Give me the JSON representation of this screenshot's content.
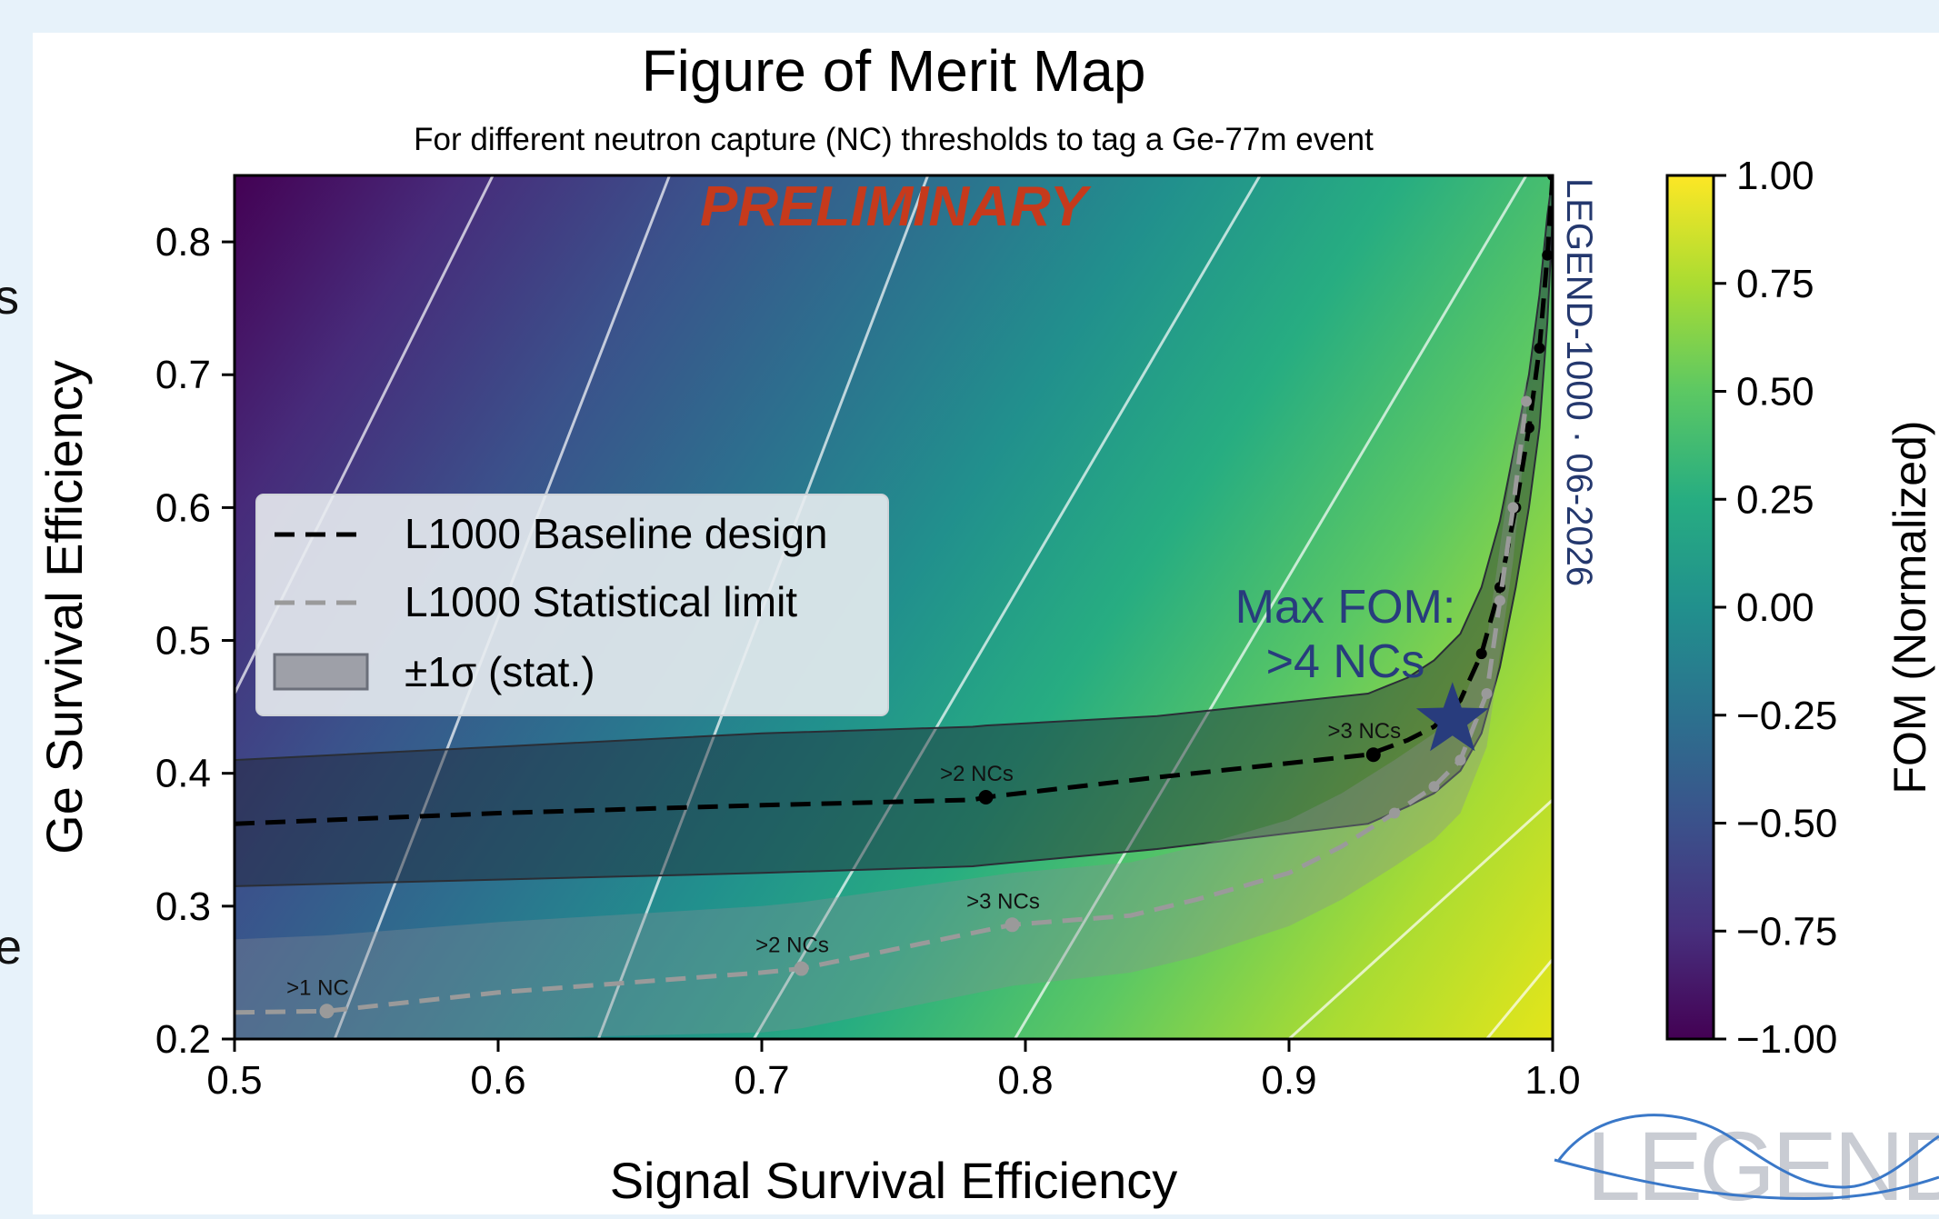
{
  "slide": {
    "edge_text_top": "s",
    "edge_text_bottom": "e",
    "logo_text": "LEGEND"
  },
  "colors": {
    "slide_background": "#e7f2fa",
    "panel_background": "#ffffff",
    "baseline": "#000000",
    "stat_limit": "#9a9a9a",
    "band": "#6b6f7a",
    "star": "#283c7d",
    "preliminary": "#c63a1c",
    "watermark": "#24386e",
    "logo": "#c9ccd3",
    "logo_wave": "#3a78c8"
  },
  "chart_data": {
    "type": "heatmap",
    "title": "Figure of Merit Map",
    "subtitle": "For different neutron capture (NC) thresholds to tag a Ge-77m event",
    "xlabel": "Signal Survival Efficiency",
    "ylabel": "Ge Survival Efficiency",
    "xlim": [
      0.5,
      1.0
    ],
    "ylim": [
      0.2,
      0.85
    ],
    "xticks": [
      0.5,
      0.6,
      0.7,
      0.8,
      0.9,
      1.0
    ],
    "xtick_labels": [
      "0.5",
      "0.6",
      "0.7",
      "0.8",
      "0.9",
      "1.0"
    ],
    "yticks": [
      0.2,
      0.3,
      0.4,
      0.5,
      0.6,
      0.7,
      0.8
    ],
    "ytick_labels": [
      "0.2",
      "0.3",
      "0.4",
      "0.5",
      "0.6",
      "0.7",
      "0.8"
    ],
    "colormap": "viridis",
    "colorbar": {
      "label": "FOM (Normalized)",
      "min": -1.0,
      "max": 1.0,
      "ticks": [
        1.0,
        0.75,
        0.5,
        0.25,
        0.0,
        -0.25,
        -0.5,
        -0.75,
        -1.0
      ],
      "tick_labels": [
        "1.00",
        "0.75",
        "0.50",
        "0.25",
        "0.00",
        "−0.25",
        "−0.50",
        "−0.75",
        "−1.00"
      ]
    },
    "contour_lines": [
      {
        "x": [
          0.5,
          0.598
        ],
        "y": [
          0.46,
          0.85
        ]
      },
      {
        "x": [
          0.538,
          0.665
        ],
        "y": [
          0.2,
          0.85
        ]
      },
      {
        "x": [
          0.638,
          0.763
        ],
        "y": [
          0.2,
          0.85
        ]
      },
      {
        "x": [
          0.697,
          0.889
        ],
        "y": [
          0.2,
          0.85
        ]
      },
      {
        "x": [
          0.796,
          0.99
        ],
        "y": [
          0.2,
          0.85
        ]
      },
      {
        "x": [
          0.9,
          1.0
        ],
        "y": [
          0.2,
          0.38
        ]
      },
      {
        "x": [
          0.975,
          1.0
        ],
        "y": [
          0.2,
          0.26
        ]
      }
    ],
    "series": [
      {
        "name": "L1000 Baseline design",
        "style": "dashed",
        "color": "#000000",
        "x": [
          0.5,
          0.6,
          0.7,
          0.78,
          0.785,
          0.85,
          0.93,
          0.945,
          0.955,
          0.965,
          0.973,
          0.98,
          0.986,
          0.991,
          0.995,
          0.998,
          1.0
        ],
        "y": [
          0.362,
          0.37,
          0.376,
          0.38,
          0.382,
          0.397,
          0.414,
          0.425,
          0.435,
          0.455,
          0.49,
          0.54,
          0.6,
          0.66,
          0.72,
          0.79,
          0.85
        ],
        "band_upper": [
          0.41,
          0.42,
          0.43,
          0.435,
          0.436,
          0.443,
          0.46,
          0.472,
          0.485,
          0.505,
          0.54,
          0.59,
          0.65,
          0.7,
          0.76,
          0.82,
          0.85
        ],
        "band_lower": [
          0.315,
          0.32,
          0.325,
          0.33,
          0.331,
          0.343,
          0.362,
          0.375,
          0.385,
          0.402,
          0.43,
          0.48,
          0.54,
          0.6,
          0.66,
          0.74,
          0.82
        ],
        "markers": [
          {
            "x": 0.785,
            "y": 0.382,
            "label": ">2 NCs"
          },
          {
            "x": 0.932,
            "y": 0.414,
            "label": ">3 NCs"
          },
          {
            "x": 0.96,
            "y": 0.44,
            "label": ""
          }
        ]
      },
      {
        "name": "L1000 Statistical limit",
        "style": "dashed",
        "color": "#9a9a9a",
        "x": [
          0.5,
          0.535,
          0.6,
          0.7,
          0.715,
          0.795,
          0.84,
          0.865,
          0.9,
          0.92,
          0.94,
          0.955,
          0.965,
          0.975,
          0.98,
          0.985,
          0.99
        ],
        "y": [
          0.22,
          0.221,
          0.235,
          0.25,
          0.253,
          0.286,
          0.293,
          0.305,
          0.325,
          0.345,
          0.37,
          0.39,
          0.41,
          0.46,
          0.53,
          0.6,
          0.68
        ],
        "band_upper": [
          0.275,
          0.278,
          0.288,
          0.3,
          0.303,
          0.325,
          0.333,
          0.345,
          0.365,
          0.385,
          0.41,
          0.43,
          0.45,
          0.5,
          0.57,
          0.64,
          0.7
        ],
        "band_lower": [
          0.2,
          0.2,
          0.2,
          0.205,
          0.208,
          0.24,
          0.25,
          0.262,
          0.285,
          0.305,
          0.33,
          0.35,
          0.37,
          0.42,
          0.49,
          0.56,
          0.66
        ],
        "markers": [
          {
            "x": 0.535,
            "y": 0.221,
            "label": ">1 NC"
          },
          {
            "x": 0.715,
            "y": 0.253,
            "label": ">2 NCs"
          },
          {
            "x": 0.795,
            "y": 0.286,
            "label": ">3 NCs"
          }
        ]
      }
    ],
    "legend": {
      "placement": "left",
      "entries": [
        "L1000 Baseline design",
        "L1000 Statistical limit",
        "±1σ (stat.)"
      ]
    },
    "annotations": {
      "preliminary": "PRELIMINARY",
      "max_fom_line1": "Max FOM:",
      "max_fom_line2": ">4 NCs",
      "max_fom_point": {
        "x": 0.962,
        "y": 0.44
      },
      "watermark": "LEGEND-1000 · 06-2026"
    }
  }
}
